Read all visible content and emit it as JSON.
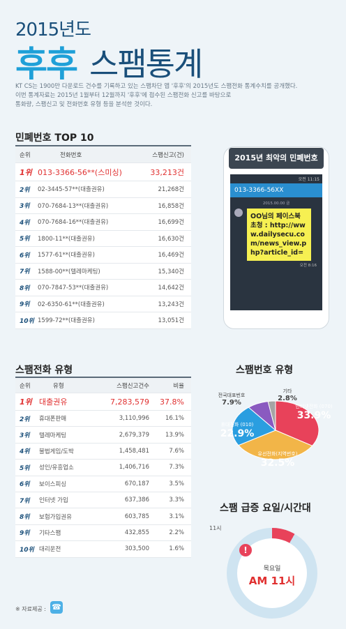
{
  "header": {
    "year": "2015년도",
    "title_main": "후후",
    "title_sub": "스팸통계",
    "intro": [
      "KT CS는 1900만 다운로드 건수를 기록하고 있는 스팸차단 앱 '후후'의 2015년도 스팸전화 통계수치를 공개했다.",
      "이번 통계자료는 2015년 1월부터 12월까지 '후후'에 접수된 스팸전화 신고를 바탕으로",
      "통화량, 스팸신고 및 전화번호 유형 등을 분석한 것이다."
    ]
  },
  "top10": {
    "title": "민폐번호 TOP 10",
    "headers": [
      "순위",
      "전화번호",
      "스팸신고(건)"
    ],
    "rows": [
      {
        "rank": "1위",
        "number": "013-3366-56**(스미싱)",
        "count": "33,213건"
      },
      {
        "rank": "2위",
        "number": "02-3445-57**(대출권유)",
        "count": "21,268건"
      },
      {
        "rank": "3위",
        "number": "070-7684-13**(대출권유)",
        "count": "16,858건"
      },
      {
        "rank": "4위",
        "number": "070-7684-16**(대출권유)",
        "count": "16,699건"
      },
      {
        "rank": "5위",
        "number": "1800-11**(대출권유)",
        "count": "16,630건"
      },
      {
        "rank": "6위",
        "number": "1577-61**(대출권유)",
        "count": "16,469건"
      },
      {
        "rank": "7위",
        "number": "1588-00**(텔레마케팅)",
        "count": "15,340건"
      },
      {
        "rank": "8위",
        "number": "070-7847-53**(대출권유)",
        "count": "14,642건"
      },
      {
        "rank": "9위",
        "number": "02-6350-61**(대출권유)",
        "count": "13,243건"
      },
      {
        "rank": "10위",
        "number": "1599-72**(대출권유)",
        "count": "13,051건"
      }
    ]
  },
  "phone": {
    "title": "2015년 최악의 민폐번호",
    "time": "오전 11:15",
    "number": "013-3366-56XX",
    "date": "2015.00.00 금",
    "message": "OO님의 페이스북 초청 : http://www.dailysecu.com/news_view.php?article_id=",
    "msg_time": "오전 8:16"
  },
  "spam_type": {
    "title": "스팸전화 유형",
    "headers": [
      "순위",
      "유형",
      "스팸신고건수",
      "비율"
    ],
    "rows": [
      {
        "rank": "1위",
        "type": "대출권유",
        "count": "7,283,579",
        "ratio": "37.8%"
      },
      {
        "rank": "2위",
        "type": "휴대폰판매",
        "count": "3,110,996",
        "ratio": "16.1%"
      },
      {
        "rank": "3위",
        "type": "텔레마케팅",
        "count": "2,679,379",
        "ratio": "13.9%"
      },
      {
        "rank": "4위",
        "type": "불법게임/도박",
        "count": "1,458,481",
        "ratio": "7.6%"
      },
      {
        "rank": "5위",
        "type": "성인/유흥업소",
        "count": "1,406,716",
        "ratio": "7.3%"
      },
      {
        "rank": "6위",
        "type": "보이스피싱",
        "count": "670,187",
        "ratio": "3.5%"
      },
      {
        "rank": "7위",
        "type": "인터넷 가입",
        "count": "637,386",
        "ratio": "3.3%"
      },
      {
        "rank": "8위",
        "type": "보험가입권유",
        "count": "603,785",
        "ratio": "3.1%"
      },
      {
        "rank": "9위",
        "type": "기타스팸",
        "count": "432,855",
        "ratio": "2.2%"
      },
      {
        "rank": "10위",
        "type": "대리운전",
        "count": "303,500",
        "ratio": "1.6%"
      }
    ]
  },
  "number_type": {
    "title": "스팸번호 유형",
    "slices": [
      {
        "label": "인터넷전화 (070)",
        "value": "33.9%",
        "pct": 33.9,
        "color": "#e8425a"
      },
      {
        "label": "유선전화(지역번호)",
        "value": "32.5%",
        "pct": 32.5,
        "color": "#f2b548"
      },
      {
        "label": "휴대전화 (010)",
        "value": "22.9%",
        "pct": 22.9,
        "color": "#2a9ee0"
      },
      {
        "label": "전국대표번호",
        "value": "7.9%",
        "pct": 7.9,
        "color": "#8a5ac0"
      },
      {
        "label": "기타",
        "value": "2.8%",
        "pct": 2.8,
        "color": "#a5a5a5"
      }
    ]
  },
  "peak": {
    "title": "스팸 급증 요일/시간대",
    "hour_label": "11시",
    "day": "목요일",
    "time": "AM 11시"
  },
  "source": "※ 자료제공 :"
}
